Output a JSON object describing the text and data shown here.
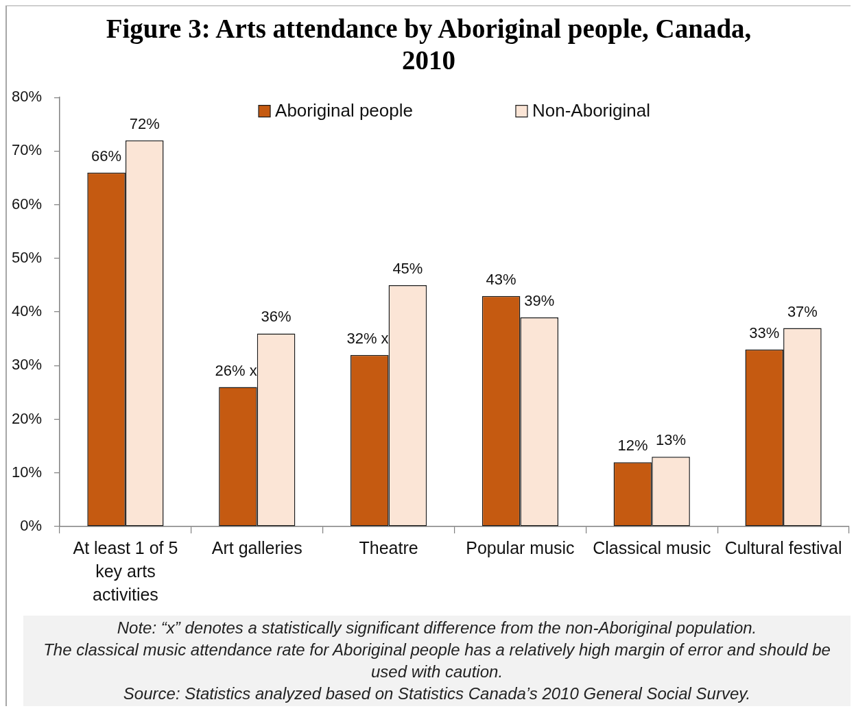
{
  "chart_data": {
    "type": "bar",
    "title": "Figure 3: Arts attendance by Aboriginal people, Canada, 2010",
    "categories": [
      "At least 1 of 5 key arts activities",
      "Art galleries",
      "Theatre",
      "Popular music",
      "Classical music",
      "Cultural festival"
    ],
    "series": [
      {
        "name": "Aboriginal people",
        "color": "#c55a11",
        "values": [
          66,
          26,
          32,
          43,
          12,
          33
        ],
        "value_labels": [
          "66%",
          "26% x",
          "32% x",
          "43%",
          "12%",
          "33%"
        ]
      },
      {
        "name": "Non-Aboriginal",
        "color": "#fbe5d6",
        "values": [
          72,
          36,
          45,
          39,
          13,
          37
        ],
        "value_labels": [
          "72%",
          "36%",
          "45%",
          "39%",
          "13%",
          "37%"
        ]
      }
    ],
    "ylim": [
      0,
      80
    ],
    "yticks": [
      {
        "value": 0,
        "label": "0%"
      },
      {
        "value": 10,
        "label": "10%"
      },
      {
        "value": 20,
        "label": "20%"
      },
      {
        "value": 30,
        "label": "30%"
      },
      {
        "value": 40,
        "label": "40%"
      },
      {
        "value": 50,
        "label": "50%"
      },
      {
        "value": 60,
        "label": "60%"
      },
      {
        "value": 70,
        "label": "70%"
      },
      {
        "value": 80,
        "label": "80%"
      }
    ],
    "grid": false,
    "legend": "top",
    "annotations": [
      "Note: “x” denotes a statistically significant difference from the non-Aboriginal population.",
      "The classical music attendance rate for Aboriginal people has a relatively high margin of error and should be used with caution.",
      "Source: Statistics analyzed based on Statistics Canada’s 2010 General Social Survey."
    ]
  }
}
